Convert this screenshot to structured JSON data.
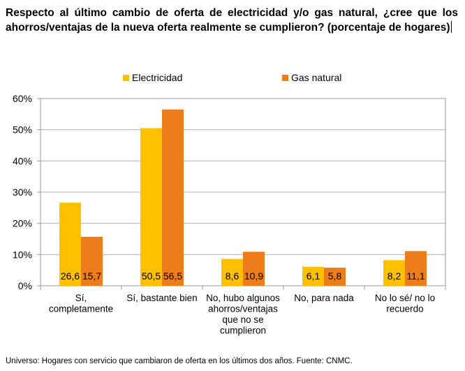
{
  "chart_data": {
    "type": "bar",
    "title": "Respecto al último cambio de oferta de electricidad y/o gas natural, ¿cree que los ahorros/ventajas de la nueva oferta realmente se cumplieron? (porcentaje de hogares)",
    "categories": [
      [
        "Sí,",
        "completamente"
      ],
      [
        "Sí, bastante bien"
      ],
      [
        "No, hubo algunos",
        "ahorros/ventajas",
        "que no se",
        "cumplieron"
      ],
      [
        "No, para nada"
      ],
      [
        "No lo sé/ no lo",
        "recuerdo"
      ]
    ],
    "series": [
      {
        "name": "Electricidad",
        "color": "#FFC000",
        "values": [
          26.6,
          50.5,
          8.6,
          6.1,
          8.2
        ],
        "labels": [
          "26,6",
          "50,5",
          "8,6",
          "6,1",
          "8,2"
        ]
      },
      {
        "name": "Gas natural",
        "color": "#ED7D1B",
        "values": [
          15.7,
          56.5,
          10.9,
          5.8,
          11.1
        ],
        "labels": [
          "15,7",
          "56,5",
          "10,9",
          "5,8",
          "11,1"
        ]
      }
    ],
    "ylim": [
      0,
      60
    ],
    "yticks": [
      0,
      10,
      20,
      30,
      40,
      50,
      60
    ],
    "ytick_labels": [
      "0%",
      "10%",
      "20%",
      "30%",
      "40%",
      "50%",
      "60%"
    ],
    "grid": true,
    "legend": "top-center",
    "xlabel": "",
    "ylabel": ""
  },
  "source": "Universo: Hogares con servicio que cambiaron de oferta en los últimos dos años. Fuente: CNMC."
}
